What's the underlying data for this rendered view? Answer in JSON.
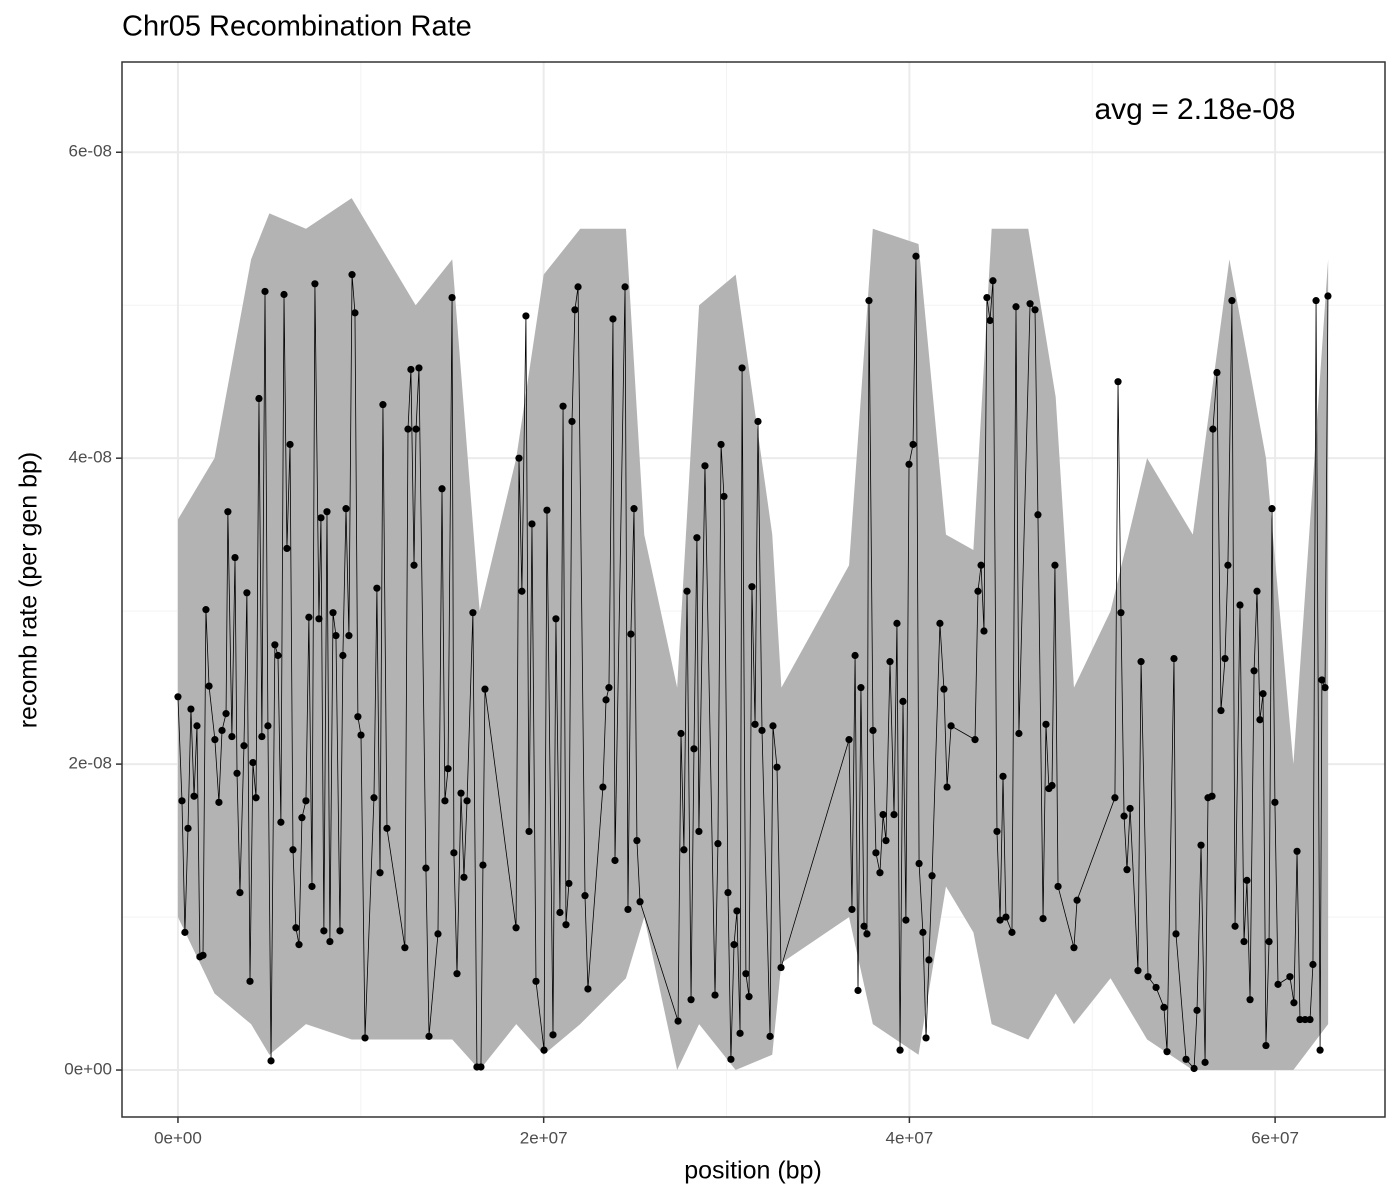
{
  "chart_data": {
    "type": "line",
    "title": "Chr05 Recombination Rate",
    "x_label": "position (bp)",
    "y_label": "recomb rate (per gen bp)",
    "annotation": "avg = 2.18e-08",
    "color": "#000000",
    "ribbon_color": "#b3b3b3",
    "grid": true,
    "xlim": [
      -3060000,
      66010000
    ],
    "ylim": [
      -3.07e-09,
      6.59e-08
    ],
    "xticks": [
      {
        "value": 0,
        "label": "0e+00"
      },
      {
        "value": 20000000,
        "label": "2e+07"
      },
      {
        "value": 40000000,
        "label": "4e+07"
      },
      {
        "value": 60000000,
        "label": "6e+07"
      }
    ],
    "yticks": [
      {
        "value": 0,
        "label": "0e+00"
      },
      {
        "value": 2e-08,
        "label": "2e-08"
      },
      {
        "value": 4e-08,
        "label": "4e-08"
      },
      {
        "value": 6e-08,
        "label": "6e-08"
      }
    ],
    "x": [
      0,
      220000,
      380000,
      550000,
      710000,
      880000,
      1040000,
      1200000,
      1370000,
      1530000,
      1700000,
      2020000,
      2240000,
      2410000,
      2630000,
      2730000,
      2950000,
      3120000,
      3230000,
      3390000,
      3610000,
      3770000,
      3940000,
      4100000,
      4270000,
      4430000,
      4590000,
      4760000,
      4920000,
      5090000,
      5300000,
      5470000,
      5630000,
      5800000,
      5960000,
      6130000,
      6290000,
      6450000,
      6620000,
      6780000,
      7000000,
      7160000,
      7330000,
      7490000,
      7710000,
      7820000,
      7980000,
      8150000,
      8310000,
      8480000,
      8640000,
      8860000,
      9020000,
      9190000,
      9350000,
      9520000,
      9680000,
      9840000,
      10010000,
      10230000,
      10720000,
      10880000,
      11050000,
      11210000,
      11430000,
      12410000,
      12580000,
      12740000,
      12910000,
      13020000,
      13180000,
      13560000,
      13730000,
      14220000,
      14440000,
      14600000,
      14770000,
      14990000,
      15090000,
      15260000,
      15480000,
      15640000,
      15810000,
      16130000,
      16350000,
      16570000,
      16680000,
      16790000,
      18490000,
      18650000,
      18810000,
      19030000,
      19200000,
      19360000,
      19580000,
      20020000,
      20180000,
      20510000,
      20670000,
      20890000,
      21060000,
      21220000,
      21380000,
      21550000,
      21710000,
      21880000,
      22260000,
      22420000,
      23240000,
      23410000,
      23570000,
      23790000,
      23900000,
      24450000,
      24610000,
      24770000,
      24940000,
      25100000,
      25270000,
      27350000,
      27510000,
      27670000,
      27840000,
      28060000,
      28220000,
      28380000,
      28490000,
      28820000,
      29370000,
      29530000,
      29700000,
      29860000,
      30080000,
      30240000,
      30410000,
      30570000,
      30740000,
      30850000,
      31060000,
      31230000,
      31390000,
      31560000,
      31720000,
      31940000,
      32380000,
      32540000,
      32760000,
      32980000,
      36700000,
      36860000,
      37030000,
      37190000,
      37350000,
      37520000,
      37680000,
      37790000,
      38010000,
      38170000,
      38390000,
      38560000,
      38720000,
      38940000,
      39160000,
      39320000,
      39490000,
      39650000,
      39810000,
      39980000,
      40200000,
      40360000,
      40530000,
      40740000,
      40910000,
      41070000,
      41240000,
      41670000,
      41890000,
      42060000,
      42280000,
      43590000,
      43750000,
      43920000,
      44080000,
      44240000,
      44410000,
      44570000,
      44790000,
      44960000,
      45120000,
      45280000,
      45610000,
      45830000,
      45990000,
      46600000,
      46870000,
      47030000,
      47310000,
      47470000,
      47630000,
      47800000,
      47960000,
      48130000,
      49000000,
      49170000,
      51240000,
      51410000,
      51570000,
      51740000,
      51900000,
      52070000,
      52500000,
      52670000,
      53050000,
      53490000,
      53920000,
      54090000,
      54470000,
      54580000,
      55130000,
      55570000,
      55730000,
      55950000,
      56170000,
      56330000,
      56550000,
      56600000,
      56820000,
      57040000,
      57260000,
      57420000,
      57640000,
      57810000,
      58080000,
      58300000,
      58460000,
      58630000,
      58850000,
      59010000,
      59170000,
      59340000,
      59500000,
      59670000,
      59830000,
      59990000,
      60160000,
      60810000,
      61030000,
      61200000,
      61360000,
      61640000,
      61910000,
      62070000,
      62240000,
      62460000,
      62560000,
      62730000,
      62890000
    ],
    "values": [
      2.44e-08,
      1.76e-08,
      9e-09,
      1.58e-08,
      2.36e-08,
      1.79e-08,
      2.25e-08,
      7.4e-09,
      7.5e-09,
      3.01e-08,
      2.51e-08,
      2.16e-08,
      1.75e-08,
      2.22e-08,
      2.33e-08,
      3.65e-08,
      2.18e-08,
      3.35e-08,
      1.94e-08,
      1.16e-08,
      2.12e-08,
      3.12e-08,
      5.8e-09,
      2.01e-08,
      1.78e-08,
      4.39e-08,
      2.18e-08,
      5.09e-08,
      2.25e-08,
      6e-10,
      2.78e-08,
      2.71e-08,
      1.62e-08,
      5.07e-08,
      3.41e-08,
      4.09e-08,
      1.44e-08,
      9.3e-09,
      8.2e-09,
      1.65e-08,
      1.76e-08,
      2.96e-08,
      1.2e-08,
      5.14e-08,
      2.95e-08,
      3.61e-08,
      9.1e-09,
      3.65e-08,
      8.4e-09,
      2.99e-08,
      2.84e-08,
      9.1e-09,
      2.71e-08,
      3.67e-08,
      2.84e-08,
      5.2e-08,
      4.95e-08,
      2.31e-08,
      2.19e-08,
      2.1e-09,
      1.78e-08,
      3.15e-08,
      1.29e-08,
      4.35e-08,
      1.58e-08,
      8e-09,
      4.19e-08,
      4.58e-08,
      3.3e-08,
      4.19e-08,
      4.59e-08,
      1.32e-08,
      2.2e-09,
      8.9e-09,
      3.8e-08,
      1.76e-08,
      1.97e-08,
      5.05e-08,
      1.42e-08,
      6.3e-09,
      1.81e-08,
      1.26e-08,
      1.76e-08,
      2.99e-08,
      2e-10,
      2e-10,
      1.34e-08,
      2.49e-08,
      9.3e-09,
      4e-08,
      3.13e-08,
      4.93e-08,
      1.56e-08,
      3.57e-08,
      5.8e-09,
      1.3e-09,
      3.66e-08,
      2.3e-09,
      2.95e-08,
      1.03e-08,
      4.34e-08,
      9.5e-09,
      1.22e-08,
      4.24e-08,
      4.97e-08,
      5.12e-08,
      1.14e-08,
      5.3e-09,
      1.85e-08,
      2.42e-08,
      2.5e-08,
      4.91e-08,
      1.37e-08,
      5.12e-08,
      1.05e-08,
      2.85e-08,
      3.67e-08,
      1.5e-08,
      1.1e-08,
      3.2e-09,
      2.2e-08,
      1.44e-08,
      3.13e-08,
      4.6e-09,
      2.1e-08,
      3.48e-08,
      1.56e-08,
      3.95e-08,
      4.9e-09,
      1.48e-08,
      4.09e-08,
      3.75e-08,
      1.16e-08,
      7e-10,
      8.2e-09,
      1.04e-08,
      2.4e-09,
      4.59e-08,
      6.3e-09,
      4.8e-09,
      3.16e-08,
      2.26e-08,
      4.24e-08,
      2.22e-08,
      2.2e-09,
      2.25e-08,
      1.98e-08,
      6.7e-09,
      2.16e-08,
      1.05e-08,
      2.71e-08,
      5.2e-09,
      2.5e-08,
      9.4e-09,
      8.9e-09,
      5.03e-08,
      2.22e-08,
      1.42e-08,
      1.29e-08,
      1.67e-08,
      1.5e-08,
      2.67e-08,
      1.67e-08,
      2.92e-08,
      1.3e-09,
      2.41e-08,
      9.8e-09,
      3.96e-08,
      4.09e-08,
      5.32e-08,
      1.35e-08,
      9e-09,
      2.1e-09,
      7.2e-09,
      1.27e-08,
      2.92e-08,
      2.49e-08,
      1.85e-08,
      2.25e-08,
      2.16e-08,
      3.13e-08,
      3.3e-08,
      2.87e-08,
      5.05e-08,
      4.9e-08,
      5.16e-08,
      1.56e-08,
      9.8e-09,
      1.92e-08,
      1e-08,
      9e-09,
      4.99e-08,
      2.2e-08,
      5.01e-08,
      4.97e-08,
      3.63e-08,
      9.9e-09,
      2.26e-08,
      1.84e-08,
      1.86e-08,
      3.3e-08,
      1.2e-08,
      8e-09,
      1.11e-08,
      1.78e-08,
      4.5e-08,
      2.99e-08,
      1.66e-08,
      1.31e-08,
      1.71e-08,
      6.5e-09,
      2.67e-08,
      6.1e-09,
      5.4e-09,
      4.1e-09,
      1.2e-09,
      2.69e-08,
      8.9e-09,
      7e-10,
      1e-10,
      3.9e-09,
      1.47e-08,
      5e-10,
      1.78e-08,
      1.79e-08,
      4.19e-08,
      4.56e-08,
      2.35e-08,
      2.69e-08,
      3.3e-08,
      5.03e-08,
      9.4e-09,
      3.04e-08,
      8.4e-09,
      1.24e-08,
      4.6e-09,
      2.61e-08,
      3.13e-08,
      2.29e-08,
      2.46e-08,
      1.6e-09,
      8.4e-09,
      3.67e-08,
      1.75e-08,
      5.6e-09,
      6.1e-09,
      4.4e-09,
      1.43e-08,
      3.3e-09,
      3.3e-09,
      3.3e-09,
      6.9e-09,
      5.03e-08,
      1.3e-09,
      2.55e-08,
      2.5e-08,
      5.06e-08
    ],
    "ribbon": {
      "x": [
        0,
        2000000,
        4000000,
        5000000,
        7000000,
        9500000,
        11000000,
        13000000,
        15000000,
        16500000,
        18500000,
        20000000,
        22000000,
        24500000,
        25500000,
        27300000,
        28500000,
        30500000,
        32500000,
        33000000,
        36700000,
        38000000,
        40500000,
        42000000,
        43500000,
        44500000,
        46500000,
        48000000,
        49000000,
        51000000,
        53000000,
        55500000,
        57500000,
        59500000,
        61000000,
        62900000
      ],
      "lower": [
        1e-08,
        5e-09,
        3e-09,
        1e-09,
        3e-09,
        2e-09,
        2e-09,
        2e-09,
        2e-09,
        0.0,
        3e-09,
        1e-09,
        3e-09,
        6e-09,
        1e-08,
        0.0,
        3e-09,
        0.0,
        1e-09,
        7e-09,
        1e-08,
        3e-09,
        1e-09,
        1.2e-08,
        9e-09,
        3e-09,
        2e-09,
        5e-09,
        3e-09,
        6e-09,
        2e-09,
        0.0,
        0.0,
        0.0,
        0.0,
        3e-09
      ],
      "upper": [
        3.6e-08,
        4e-08,
        5.3e-08,
        5.6e-08,
        5.5e-08,
        5.7e-08,
        5.4e-08,
        5e-08,
        5.3e-08,
        3e-08,
        4e-08,
        5.2e-08,
        5.5e-08,
        5.5e-08,
        3.5e-08,
        2.5e-08,
        5e-08,
        5.2e-08,
        3.5e-08,
        2.5e-08,
        3.3e-08,
        5.5e-08,
        5.4e-08,
        3.5e-08,
        3.4e-08,
        5.5e-08,
        5.5e-08,
        4.4e-08,
        2.5e-08,
        3e-08,
        4e-08,
        3.5e-08,
        5.3e-08,
        4e-08,
        2e-08,
        5.3e-08
      ]
    }
  }
}
